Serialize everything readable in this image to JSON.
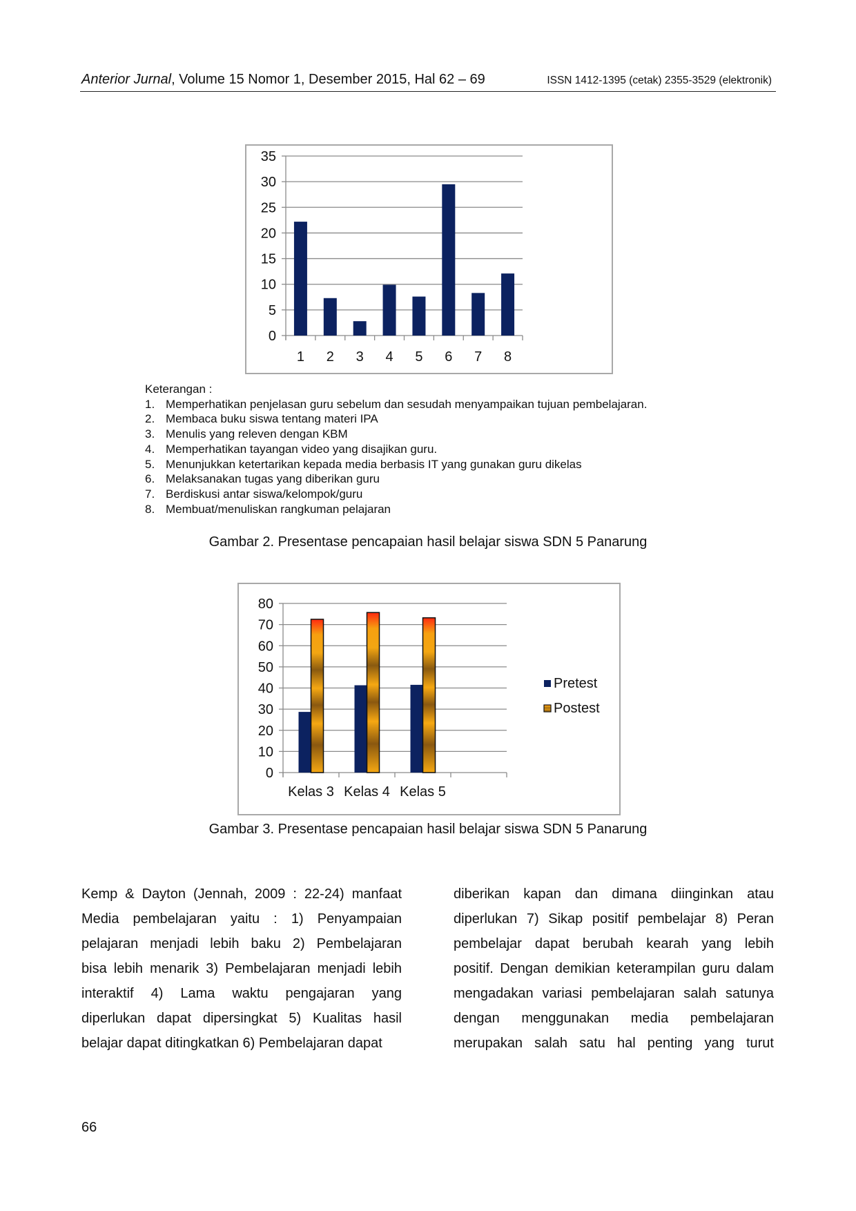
{
  "header": {
    "journal": "Anterior Jurnal",
    "issue": ", Volume 15 Nomor 1, Desember 2015, Hal 62 – 69",
    "issn": "ISSN 1412-1395 (cetak) 2355-3529 (elektronik)"
  },
  "chart_data": [
    {
      "type": "bar",
      "categories": [
        "1",
        "2",
        "3",
        "4",
        "5",
        "6",
        "7",
        "8"
      ],
      "values": [
        22.2,
        7.3,
        2.8,
        9.9,
        7.6,
        29.5,
        8.3,
        12.1
      ],
      "ylim": [
        0,
        35
      ],
      "yticks": [
        0,
        5,
        10,
        15,
        20,
        25,
        30,
        35
      ],
      "grid": true,
      "colors": {
        "bar": "#0c2260"
      }
    },
    {
      "type": "bar",
      "categories": [
        "Kelas 3",
        "Kelas 4",
        "Kelas 5",
        ""
      ],
      "series": [
        {
          "name": "Pretest",
          "values": [
            28.7,
            41.3,
            41.5,
            null
          ]
        },
        {
          "name": "Postest",
          "values": [
            72.5,
            75.7,
            73.2,
            null
          ]
        }
      ],
      "ylim": [
        0,
        80
      ],
      "yticks": [
        0,
        10,
        20,
        30,
        40,
        50,
        60,
        70,
        80
      ],
      "grid": true,
      "legend": "right",
      "colors": {
        "Pretest": "#0c2260",
        "Postest": "#f0a010"
      }
    }
  ],
  "keterangan": {
    "title": "Keterangan :",
    "items": [
      {
        "n": "1.",
        "text": "Memperhatikan penjelasan guru sebelum dan sesudah menyampaikan tujuan pembelajaran."
      },
      {
        "n": "2.",
        "text": "Membaca buku siswa tentang materi IPA"
      },
      {
        "n": "3.",
        "text": "Menulis yang releven dengan KBM"
      },
      {
        "n": "4.",
        "text": "Memperhatikan tayangan video yang disajikan guru."
      },
      {
        "n": "5.",
        "text": "Menunjukkan ketertarikan kepada media  berbasis IT yang gunakan guru dikelas"
      },
      {
        "n": "6.",
        "text": "Melaksanakan tugas yang diberikan guru"
      },
      {
        "n": "7.",
        "text": "Berdiskusi antar siswa/kelompok/guru"
      },
      {
        "n": "8.",
        "text": "Membuat/menuliskan rangkuman pelajaran"
      }
    ]
  },
  "captions": {
    "fig2": "Gambar 2. Presentase pencapaian hasil belajar siswa SDN 5 Panarung",
    "fig3": "Gambar 3. Presentase pencapaian hasil belajar siswa SDN 5 Panarung"
  },
  "body": {
    "left": [
      "Kemp & Dayton (Jennah, 2009 : 22-24) manfaat",
      "Media pembelajaran yaitu : 1) Penyampaian",
      "pelajaran menjadi lebih baku 2) Pembelajaran",
      "bisa lebih menarik 3) Pembelajaran menjadi lebih",
      "interaktif 4) Lama waktu pengajaran yang",
      "diperlukan dapat dipersingkat 5) Kualitas hasil",
      "belajar dapat ditingkatkan 6)  Pembelajaran dapat"
    ],
    "right": [
      "diberikan kapan dan dimana diinginkan atau",
      "diperlukan 7) Sikap positif pembelajar 8) Peran",
      "pembelajar dapat berubah kearah yang lebih",
      "positif. Dengan demikian keterampilan guru dalam",
      "mengadakan variasi pembelajaran salah satunya",
      "dengan menggunakan media pembelajaran",
      "merupakan salah satu hal penting yang turut"
    ]
  },
  "page_number": "66"
}
